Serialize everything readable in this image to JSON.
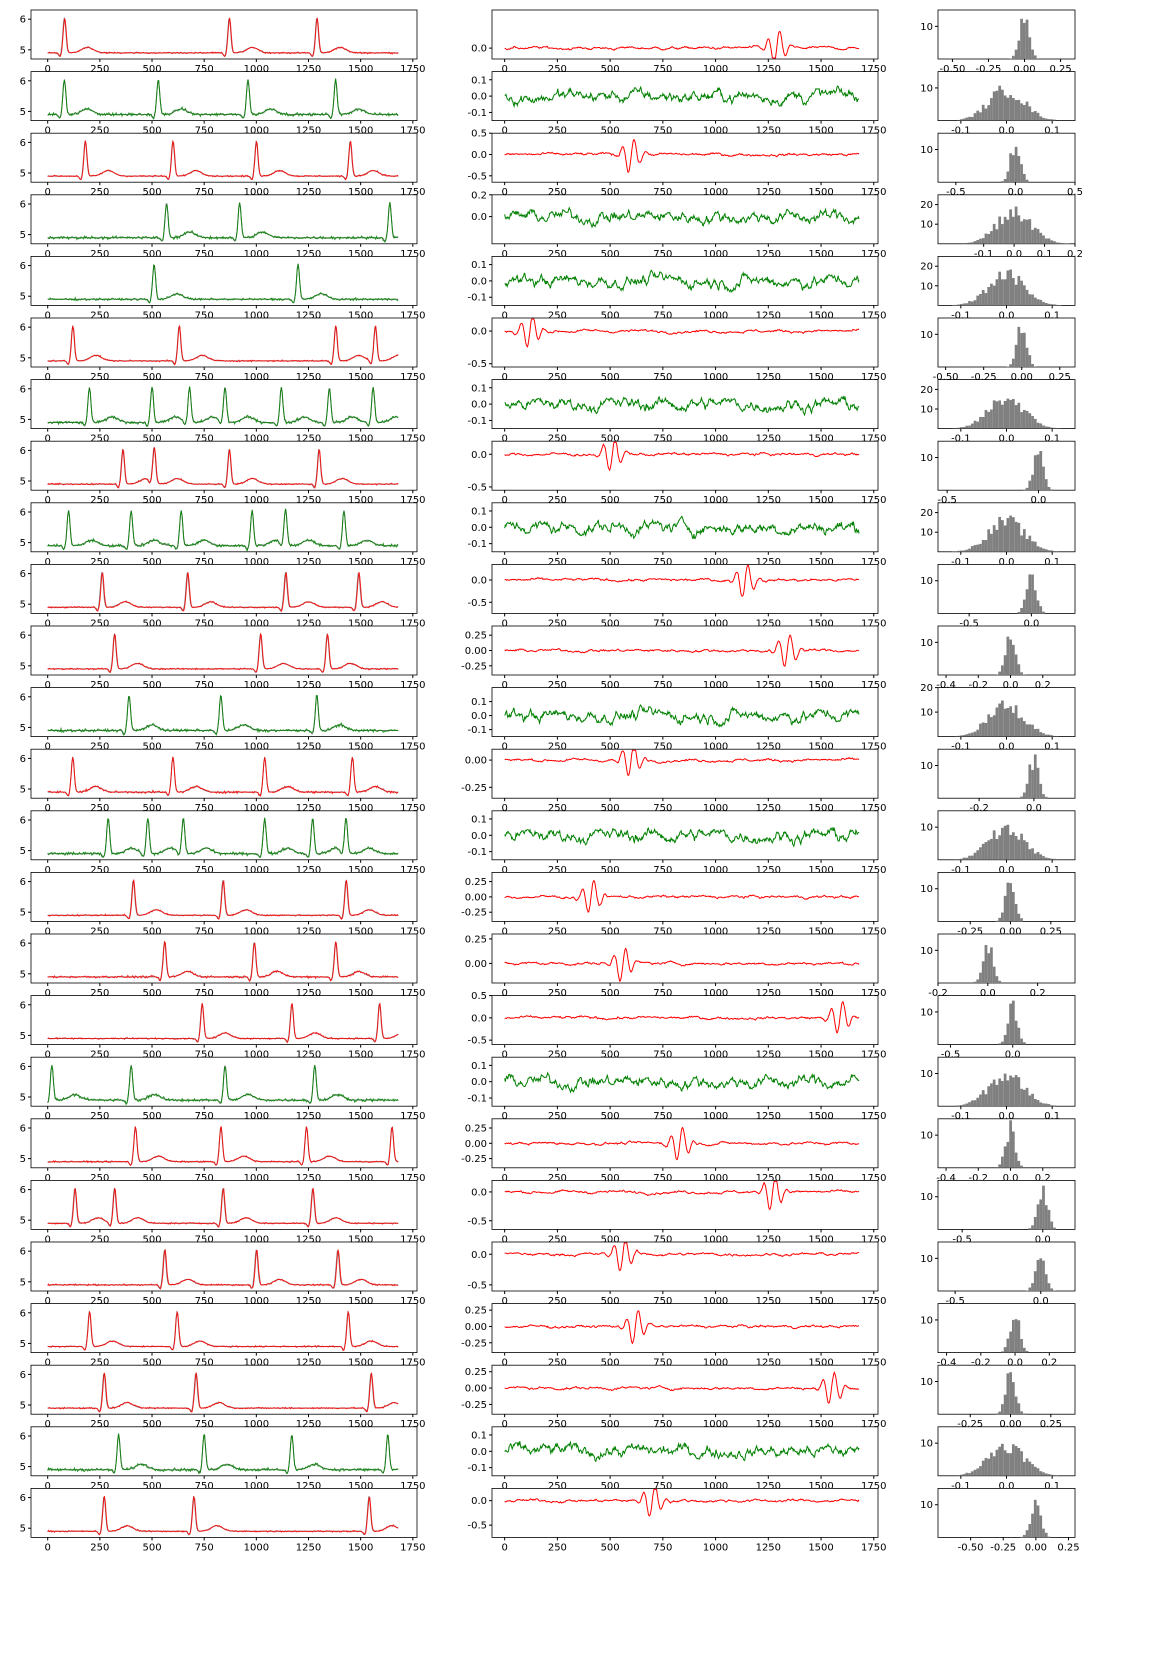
{
  "figure": {
    "rows": 25,
    "colors": {
      "signal_gray": "#808080",
      "good": "#008000",
      "bad": "#ff0000",
      "hist": "#808080",
      "axes": "#000000"
    },
    "row_status": [
      "bad",
      "good",
      "bad",
      "good",
      "good",
      "bad",
      "good",
      "bad",
      "good",
      "bad",
      "bad",
      "good",
      "bad",
      "good",
      "bad",
      "bad",
      "bad",
      "good",
      "bad",
      "bad",
      "bad",
      "bad",
      "bad",
      "good",
      "bad"
    ],
    "signal_axes": {
      "xlim": [
        -80,
        1770
      ],
      "ylim": [
        4.7,
        6.3
      ],
      "xticks": [
        0,
        250,
        500,
        750,
        1000,
        1250,
        1500,
        1750
      ],
      "yticks": [
        5,
        6
      ]
    },
    "residual_axes": {
      "xlim": [
        -60,
        1770
      ],
      "xticks": [
        0,
        250,
        500,
        750,
        1000,
        1250,
        1500,
        1750
      ],
      "ylims": [
        [
          -0.1,
          0.35
        ],
        [
          -0.15,
          0.15
        ],
        [
          -0.65,
          0.5
        ],
        [
          -0.25,
          0.2
        ],
        [
          -0.15,
          0.15
        ],
        [
          -0.55,
          0.2
        ],
        [
          -0.15,
          0.15
        ],
        [
          -0.55,
          0.2
        ],
        [
          -0.15,
          0.15
        ],
        [
          -0.75,
          0.35
        ],
        [
          -0.4,
          0.4
        ],
        [
          -0.15,
          0.2
        ],
        [
          -0.35,
          0.1
        ],
        [
          -0.15,
          0.15
        ],
        [
          -0.4,
          0.4
        ],
        [
          -0.2,
          0.3
        ],
        [
          -0.6,
          0.5
        ],
        [
          -0.15,
          0.15
        ],
        [
          -0.4,
          0.4
        ],
        [
          -0.65,
          0.2
        ],
        [
          -0.6,
          0.2
        ],
        [
          -0.4,
          0.35
        ],
        [
          -0.4,
          0.35
        ],
        [
          -0.15,
          0.15
        ],
        [
          -0.75,
          0.25
        ]
      ],
      "yticks": [
        [
          "0.0"
        ],
        [
          "-0.1",
          "0.0",
          "0.1"
        ],
        [
          "-0.5",
          "0.0",
          "0.5"
        ],
        [
          "0.0",
          "0.2"
        ],
        [
          "-0.1",
          "0.0",
          "0.1"
        ],
        [
          "-0.5",
          "0.0"
        ],
        [
          "-0.1",
          "0.0",
          "0.1"
        ],
        [
          "-0.5",
          "0.0"
        ],
        [
          "-0.1",
          "0.0",
          "0.1"
        ],
        [
          "-0.5",
          "0.0"
        ],
        [
          "-0.25",
          "0.00",
          "0.25"
        ],
        [
          "-0.1",
          "0.0",
          "0.1"
        ],
        [
          "-0.25",
          "0.00"
        ],
        [
          "-0.1",
          "0.0",
          "0.1"
        ],
        [
          "-0.25",
          "0.00",
          "0.25"
        ],
        [
          "0.00",
          "0.25"
        ],
        [
          "-0.5",
          "0.0",
          "0.5"
        ],
        [
          "-0.1",
          "0.0",
          "0.1"
        ],
        [
          "-0.25",
          "0.00",
          "0.25"
        ],
        [
          "-0.5",
          "0.0"
        ],
        [
          "-0.5",
          "0.0"
        ],
        [
          "-0.25",
          "0.00",
          "0.25"
        ],
        [
          "-0.25",
          "0.00",
          "0.25"
        ],
        [
          "-0.1",
          "0.0",
          "0.1"
        ],
        [
          "-0.5",
          "0.0"
        ]
      ]
    },
    "hist_axes": {
      "ymax": [
        15,
        15,
        15,
        25,
        25,
        15,
        25,
        15,
        25,
        15,
        15,
        20,
        15,
        15,
        15,
        15,
        15,
        15,
        15,
        15,
        15,
        15,
        15,
        15,
        15
      ],
      "yticks": [
        [
          "10"
        ],
        [
          "10"
        ],
        [
          "10"
        ],
        [
          "10",
          "20"
        ],
        [
          "10",
          "20"
        ],
        [
          "10"
        ],
        [
          "10",
          "20"
        ],
        [
          "10"
        ],
        [
          "10",
          "20"
        ],
        [
          "10"
        ],
        [
          "10"
        ],
        [
          "10",
          "20"
        ],
        [
          "10"
        ],
        [
          "10"
        ],
        [
          "10"
        ],
        [
          "10"
        ],
        [
          "10"
        ],
        [
          "10"
        ],
        [
          "10"
        ],
        [
          "10"
        ],
        [
          "10"
        ],
        [
          "10"
        ],
        [
          "10"
        ],
        [
          "10"
        ],
        [
          "10"
        ]
      ],
      "xlims": [
        [
          -0.6,
          0.35
        ],
        [
          -0.15,
          0.15
        ],
        [
          -0.65,
          0.5
        ],
        [
          -0.25,
          0.2
        ],
        [
          -0.15,
          0.15
        ],
        [
          -0.55,
          0.35
        ],
        [
          -0.15,
          0.15
        ],
        [
          -0.55,
          0.2
        ],
        [
          -0.15,
          0.15
        ],
        [
          -0.75,
          0.35
        ],
        [
          -0.45,
          0.4
        ],
        [
          -0.15,
          0.15
        ],
        [
          -0.35,
          0.15
        ],
        [
          -0.15,
          0.15
        ],
        [
          -0.45,
          0.4
        ],
        [
          -0.2,
          0.35
        ],
        [
          -0.6,
          0.5
        ],
        [
          -0.15,
          0.15
        ],
        [
          -0.45,
          0.4
        ],
        [
          -0.65,
          0.2
        ],
        [
          -0.6,
          0.2
        ],
        [
          -0.45,
          0.35
        ],
        [
          -0.45,
          0.4
        ],
        [
          -0.15,
          0.15
        ],
        [
          -0.75,
          0.3
        ]
      ],
      "xticks": [
        [
          "-0.50",
          "-0.25",
          "0.00",
          "0.25"
        ],
        [
          "-0.1",
          "0.0",
          "0.1"
        ],
        [
          "-0.5",
          "0.0",
          "0.5"
        ],
        [
          "-0.1",
          "0.0",
          "0.1",
          "0.2"
        ],
        [
          "-0.1",
          "0.0",
          "0.1"
        ],
        [
          "-0.50",
          "-0.25",
          "0.00",
          "0.25"
        ],
        [
          "-0.1",
          "0.0",
          "0.1"
        ],
        [
          "-0.5",
          "0.0"
        ],
        [
          "-0.1",
          "0.0",
          "0.1"
        ],
        [
          "-0.5",
          "0.0"
        ],
        [
          "-0.4",
          "-0.2",
          "0.0",
          "0.2"
        ],
        [
          "-0.1",
          "0.0",
          "0.1"
        ],
        [
          "-0.2",
          "0.0"
        ],
        [
          "-0.1",
          "0.0",
          "0.1"
        ],
        [
          "-0.25",
          "0.00",
          "0.25"
        ],
        [
          "-0.2",
          "0.0",
          "0.2"
        ],
        [
          "-0.5",
          "0.0"
        ],
        [
          "-0.1",
          "0.0",
          "0.1"
        ],
        [
          "-0.4",
          "-0.2",
          "0.0",
          "0.2"
        ],
        [
          "-0.5",
          "0.0"
        ],
        [
          "-0.5",
          "0.0"
        ],
        [
          "-0.4",
          "-0.2",
          "0.0",
          "0.2"
        ],
        [
          "-0.25",
          "0.00",
          "0.25"
        ],
        [
          "-0.1",
          "0.0",
          "0.1"
        ],
        [
          "-0.50",
          "-0.25",
          "0.00",
          "0.25"
        ]
      ]
    }
  },
  "chart_data": {
    "type": "line",
    "description_of_panels": [
      "signal",
      "residual",
      "histogram"
    ],
    "rows": [
      {
        "r_peaks": [
          80,
          870,
          1290
        ],
        "noise": 0.02
      },
      {
        "r_peaks": [
          80,
          530,
          960,
          1380
        ],
        "noise": 0.04
      },
      {
        "r_peaks": [
          180,
          600,
          1000,
          1450
        ],
        "noise": 0.02
      },
      {
        "r_peaks": [
          570,
          920,
          1640
        ],
        "noise": 0.04
      },
      {
        "r_peaks": [
          510,
          1200
        ],
        "noise": 0.03
      },
      {
        "r_peaks": [
          120,
          630,
          1380,
          1570
        ],
        "noise": 0.02
      },
      {
        "r_peaks": [
          200,
          500,
          680,
          850,
          1120,
          1350,
          1560
        ],
        "noise": 0.04
      },
      {
        "r_peaks": [
          360,
          510,
          870,
          1300
        ],
        "noise": 0.02
      },
      {
        "r_peaks": [
          100,
          400,
          640,
          980,
          1140,
          1420
        ],
        "noise": 0.04
      },
      {
        "r_peaks": [
          260,
          670,
          1140,
          1490
        ],
        "noise": 0.02
      },
      {
        "r_peaks": [
          320,
          1020,
          1340
        ],
        "noise": 0.02
      },
      {
        "r_peaks": [
          390,
          830,
          1290
        ],
        "noise": 0.04
      },
      {
        "r_peaks": [
          120,
          600,
          1040,
          1460
        ],
        "noise": 0.03
      },
      {
        "r_peaks": [
          290,
          480,
          650,
          1040,
          1270,
          1430
        ],
        "noise": 0.04
      },
      {
        "r_peaks": [
          410,
          840,
          1430
        ],
        "noise": 0.02
      },
      {
        "r_peaks": [
          560,
          990,
          1380
        ],
        "noise": 0.03
      },
      {
        "r_peaks": [
          740,
          1170,
          1590
        ],
        "noise": 0.02
      },
      {
        "r_peaks": [
          20,
          400,
          850,
          1280
        ],
        "noise": 0.04
      },
      {
        "r_peaks": [
          420,
          830,
          1240,
          1650
        ],
        "noise": 0.02
      },
      {
        "r_peaks": [
          130,
          320,
          840,
          1270
        ],
        "noise": 0.02
      },
      {
        "r_peaks": [
          560,
          1000,
          1390
        ],
        "noise": 0.02
      },
      {
        "r_peaks": [
          200,
          620,
          1440
        ],
        "noise": 0.02
      },
      {
        "r_peaks": [
          270,
          710,
          1550
        ],
        "noise": 0.02
      },
      {
        "r_peaks": [
          340,
          750,
          1170,
          1630
        ],
        "noise": 0.04
      },
      {
        "r_peaks": [
          270,
          700,
          1540
        ],
        "noise": 0.02
      }
    ]
  }
}
